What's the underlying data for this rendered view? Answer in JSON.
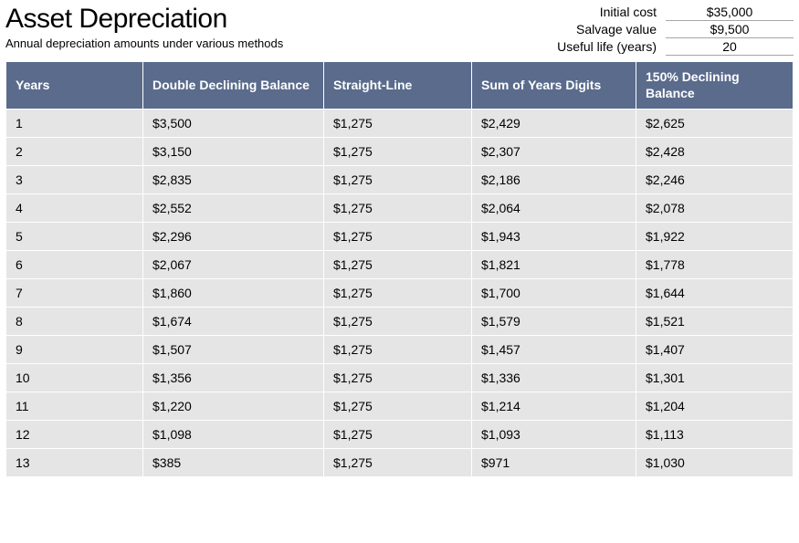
{
  "header": {
    "title": "Asset Depreciation",
    "subtitle": "Annual depreciation amounts under various methods"
  },
  "params": {
    "initial_cost_label": "Initial cost",
    "initial_cost_value": "$35,000",
    "salvage_label": "Salvage value",
    "salvage_value": "$9,500",
    "useful_life_label": "Useful life (years)",
    "useful_life_value": "20"
  },
  "table": {
    "header_bg": "#5a6b8c",
    "header_fg": "#ffffff",
    "cell_bg": "#e5e5e5",
    "border_color": "#ffffff",
    "columns": [
      "Years",
      "Double Declining Balance",
      "Straight-Line",
      "Sum of Years Digits",
      "150% Declining Balance"
    ],
    "rows": [
      [
        "1",
        "$3,500",
        "$1,275",
        "$2,429",
        "$2,625"
      ],
      [
        "2",
        "$3,150",
        "$1,275",
        "$2,307",
        "$2,428"
      ],
      [
        "3",
        "$2,835",
        "$1,275",
        "$2,186",
        "$2,246"
      ],
      [
        "4",
        "$2,552",
        "$1,275",
        "$2,064",
        "$2,078"
      ],
      [
        "5",
        "$2,296",
        "$1,275",
        "$1,943",
        "$1,922"
      ],
      [
        "6",
        "$2,067",
        "$1,275",
        "$1,821",
        "$1,778"
      ],
      [
        "7",
        "$1,860",
        "$1,275",
        "$1,700",
        "$1,644"
      ],
      [
        "8",
        "$1,674",
        "$1,275",
        "$1,579",
        "$1,521"
      ],
      [
        "9",
        "$1,507",
        "$1,275",
        "$1,457",
        "$1,407"
      ],
      [
        "10",
        "$1,356",
        "$1,275",
        "$1,336",
        "$1,301"
      ],
      [
        "11",
        "$1,220",
        "$1,275",
        "$1,214",
        "$1,204"
      ],
      [
        "12",
        "$1,098",
        "$1,275",
        "$1,093",
        "$1,113"
      ],
      [
        "13",
        "$385",
        "$1,275",
        "$971",
        "$1,030"
      ]
    ]
  }
}
